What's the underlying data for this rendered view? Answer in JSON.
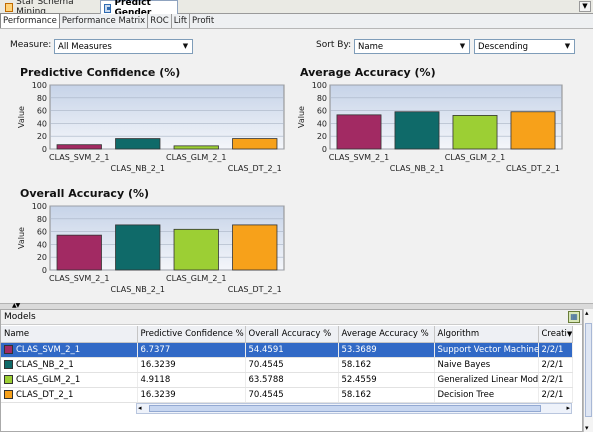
{
  "editor_tabs": [
    {
      "label": "Star Schema Mining"
    },
    {
      "label": "Predict Gender"
    }
  ],
  "sub_tabs": [
    {
      "label": "Performance"
    },
    {
      "label": "Performance Matrix"
    },
    {
      "label": "ROC"
    },
    {
      "label": "Lift"
    },
    {
      "label": "Profit"
    }
  ],
  "toolbar": {
    "measure_label": "Measure:",
    "measure_value": "All Measures",
    "sort_label": "Sort By:",
    "sort_value": "Name",
    "order_value": "Descending"
  },
  "chart_data": [
    {
      "type": "bar",
      "title": "Predictive Confidence (%)",
      "ylabel": "Value",
      "ylim": [
        0,
        100
      ],
      "yticks": [
        "0",
        "20",
        "40",
        "60",
        "80",
        "100"
      ],
      "categories": [
        "CLAS_SVM_2_1",
        "CLAS_NB_2_1",
        "CLAS_GLM_2_1",
        "CLAS_DT_2_1"
      ],
      "values": [
        6.7377,
        16.3239,
        4.9118,
        16.3239
      ],
      "colors": [
        "#a22a63",
        "#0f6a69",
        "#9ccf34",
        "#f7a11a"
      ]
    },
    {
      "type": "bar",
      "title": "Average Accuracy (%)",
      "ylabel": "Value",
      "ylim": [
        0,
        100
      ],
      "yticks": [
        "0",
        "20",
        "40",
        "60",
        "80",
        "100"
      ],
      "categories": [
        "CLAS_SVM_2_1",
        "CLAS_NB_2_1",
        "CLAS_GLM_2_1",
        "CLAS_DT_2_1"
      ],
      "values": [
        53.3689,
        58.162,
        52.4559,
        58.162
      ],
      "colors": [
        "#a22a63",
        "#0f6a69",
        "#9ccf34",
        "#f7a11a"
      ]
    },
    {
      "type": "bar",
      "title": "Overall Accuracy (%)",
      "ylabel": "Value",
      "ylim": [
        0,
        100
      ],
      "yticks": [
        "0",
        "20",
        "40",
        "60",
        "80",
        "100"
      ],
      "categories": [
        "CLAS_SVM_2_1",
        "CLAS_NB_2_1",
        "CLAS_GLM_2_1",
        "CLAS_DT_2_1"
      ],
      "values": [
        54.4591,
        70.4545,
        63.5788,
        70.4545
      ],
      "colors": [
        "#a22a63",
        "#0f6a69",
        "#9ccf34",
        "#f7a11a"
      ]
    }
  ],
  "models": {
    "title": "Models",
    "columns": [
      "Name",
      "Predictive Confidence %",
      "Overall Accuracy %",
      "Average Accuracy %",
      "Algorithm",
      "Creati"
    ],
    "rows": [
      {
        "name": "CLAS_SVM_2_1",
        "pc": "6.7377",
        "oa": "54.4591",
        "aa": "53.3689",
        "algorithm": "Support Vector Machine",
        "created": "2/2/1",
        "color": "#a22a63",
        "selected": true
      },
      {
        "name": "CLAS_NB_2_1",
        "pc": "16.3239",
        "oa": "70.4545",
        "aa": "58.162",
        "algorithm": "Naive Bayes",
        "created": "2/2/1",
        "color": "#0f6a69",
        "selected": false
      },
      {
        "name": "CLAS_GLM_2_1",
        "pc": "4.9118",
        "oa": "63.5788",
        "aa": "52.4559",
        "algorithm": "Generalized Linear Model",
        "created": "2/2/1",
        "color": "#9ccf34",
        "selected": false
      },
      {
        "name": "CLAS_DT_2_1",
        "pc": "16.3239",
        "oa": "70.4545",
        "aa": "58.162",
        "algorithm": "Decision Tree",
        "created": "2/2/1",
        "color": "#f7a11a",
        "selected": false
      }
    ]
  }
}
